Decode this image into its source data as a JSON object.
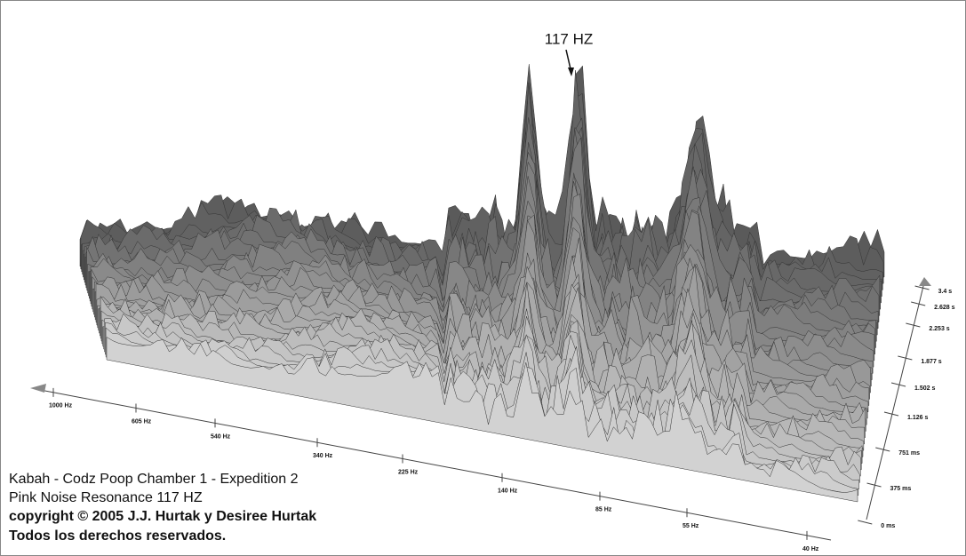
{
  "annotation": "117 HZ",
  "frequency_axis": {
    "labels": [
      "1000 Hz",
      "605 Hz",
      "540 Hz",
      "340 Hz",
      "225 Hz",
      "140 Hz",
      "85 Hz",
      "55 Hz",
      "40 Hz"
    ]
  },
  "time_axis": {
    "labels": [
      "3.4 s",
      "2.628 s",
      "2.253 s",
      "1.877 s",
      "1.502 s",
      "1.126 s",
      "751 ms",
      "375 ms",
      "0 ms"
    ]
  },
  "caption": [
    "Kabah - Codz Poop Chamber 1 - Expedition 2",
    "Pink Noise Resonance 117 HZ",
    "copyright © 2005 J.J. Hurtak y Desiree Hurtak",
    "Todos los derechos reservados."
  ]
}
